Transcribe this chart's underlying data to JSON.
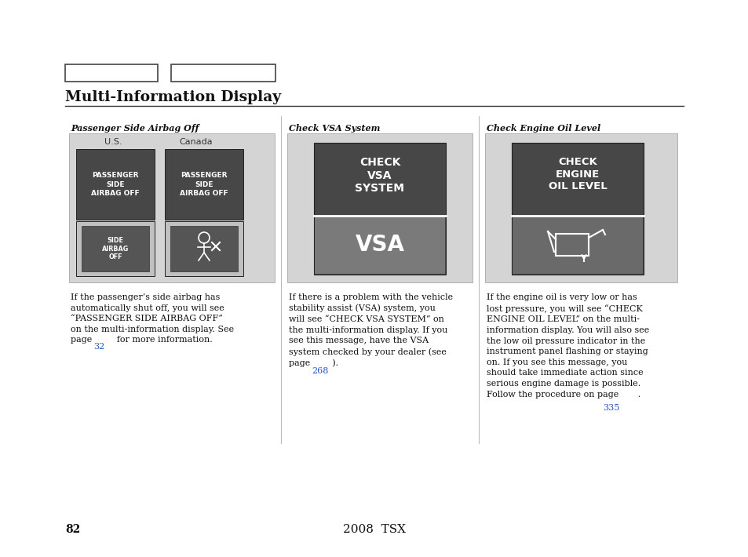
{
  "title": "Multi-Information Display",
  "page_num": "82",
  "footer_center": "2008  TSX",
  "bg_color": "#ffffff",
  "section_titles": [
    "Passenger Side Airbag Off",
    "Check VSA System",
    "Check Engine Oil Level"
  ],
  "dark_box": "#4a4a4a",
  "light_gray_bg": "#d4d4d4",
  "medium_gray": "#888888",
  "link_color": "#2255bb",
  "col1_body1": "If the passenger’s side airbag has",
  "col1_body2": "automatically shut off, you will see",
  "col1_body3": "“PASSENGER SIDE AIRBAG OFF”",
  "col1_body4": "on the multi-information display. See",
  "col1_body5": "page ",
  "col1_link": "32",
  "col1_body6": "  for more information.",
  "col2_body1": "If there is a problem with the vehicle",
  "col2_body2": "stability assist (VSA) system, you",
  "col2_body3": "will see “CHECK VSA SYSTEM” on",
  "col2_body4": "the multi-information display. If you",
  "col2_body5": "see this message, have the VSA",
  "col2_body6": "system checked by your dealer (see",
  "col2_body7": "page ",
  "col2_link": "268",
  "col2_body8": " ).",
  "col3_body1": "If the engine oil is very low or has",
  "col3_body2": "lost pressure, you will see “CHECK",
  "col3_body3": "ENGINE OIL LEVEL” on the multi-",
  "col3_body4": "information display. You will also see",
  "col3_body5": "the low oil pressure indicator in the",
  "col3_body6": "instrument panel flashing or staying",
  "col3_body7": "on. If you see this message, you",
  "col3_body8": "should take immediate action since",
  "col3_body9": "serious engine damage is possible.",
  "col3_body10": "Follow the procedure on page ",
  "col3_link": "335",
  "col3_body11": " ."
}
